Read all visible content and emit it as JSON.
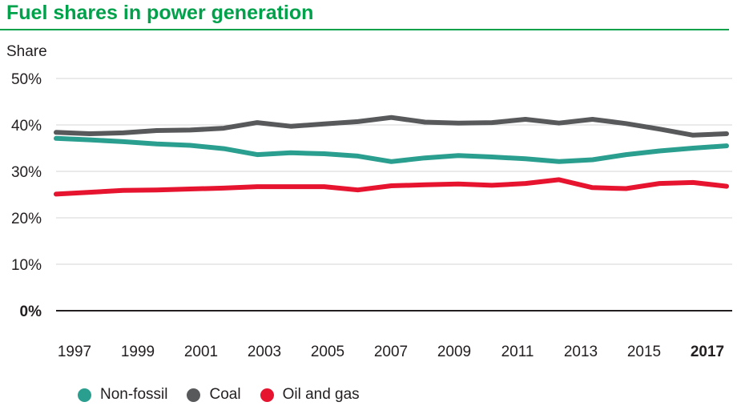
{
  "header": {
    "title": "Fuel shares in power generation"
  },
  "colors": {
    "title_green": "#00a14b",
    "non_fossil_teal": "#2a9e8f",
    "coal_gray": "#58595b",
    "oil_gas_red": "#e6142f",
    "axis_text": "#231f20",
    "gridline": "#d4d6d6",
    "zero_line": "#231f20"
  },
  "chart_data": {
    "type": "line",
    "title": "Fuel shares in power generation",
    "ylabel": "Share",
    "xlabel": "",
    "ylim": [
      0,
      50
    ],
    "grid": true,
    "legend_position": "bottom",
    "x": [
      1997,
      1998,
      1999,
      2000,
      2001,
      2002,
      2003,
      2004,
      2005,
      2006,
      2007,
      2008,
      2009,
      2010,
      2011,
      2012,
      2013,
      2014,
      2015,
      2016,
      2017
    ],
    "series": [
      {
        "name": "Non-fossil",
        "color": "#2a9e8f",
        "values": [
          37.1,
          36.8,
          36.4,
          35.9,
          35.6,
          34.9,
          33.6,
          34.0,
          33.8,
          33.3,
          32.1,
          32.9,
          33.4,
          33.1,
          32.7,
          32.1,
          32.5,
          33.6,
          34.4,
          35.0,
          35.5
        ]
      },
      {
        "name": "Coal",
        "color": "#58595b",
        "values": [
          38.4,
          38.1,
          38.3,
          38.8,
          38.9,
          39.3,
          40.5,
          39.7,
          40.2,
          40.7,
          41.6,
          40.6,
          40.4,
          40.5,
          41.2,
          40.4,
          41.2,
          40.3,
          39.1,
          37.8,
          38.1
        ]
      },
      {
        "name": "Oil and gas",
        "color": "#e6142f",
        "values": [
          25.1,
          25.5,
          25.9,
          26.0,
          26.2,
          26.4,
          26.7,
          26.7,
          26.7,
          26.0,
          26.9,
          27.1,
          27.3,
          27.0,
          27.4,
          28.2,
          26.5,
          26.3,
          27.4,
          27.6,
          26.8
        ]
      }
    ],
    "y_ticks": [
      {
        "label": "50%",
        "value": 50,
        "bold": false
      },
      {
        "label": "40%",
        "value": 40,
        "bold": false
      },
      {
        "label": "30%",
        "value": 30,
        "bold": false
      },
      {
        "label": "20%",
        "value": 20,
        "bold": false
      },
      {
        "label": "10%",
        "value": 10,
        "bold": false
      },
      {
        "label": "0%",
        "value": 0,
        "bold": true
      }
    ],
    "x_ticks": [
      {
        "label": "1997",
        "bold": false
      },
      {
        "label": "1999",
        "bold": false
      },
      {
        "label": "2001",
        "bold": false
      },
      {
        "label": "2003",
        "bold": false
      },
      {
        "label": "2005",
        "bold": false
      },
      {
        "label": "2007",
        "bold": false
      },
      {
        "label": "2009",
        "bold": false
      },
      {
        "label": "2011",
        "bold": false
      },
      {
        "label": "2013",
        "bold": false
      },
      {
        "label": "2015",
        "bold": false
      },
      {
        "label": "2017",
        "bold": true
      }
    ]
  },
  "legend": {
    "items": [
      {
        "label": "Non-fossil",
        "color": "#2a9e8f"
      },
      {
        "label": "Coal",
        "color": "#58595b"
      },
      {
        "label": "Oil and gas",
        "color": "#e6142f"
      }
    ]
  }
}
